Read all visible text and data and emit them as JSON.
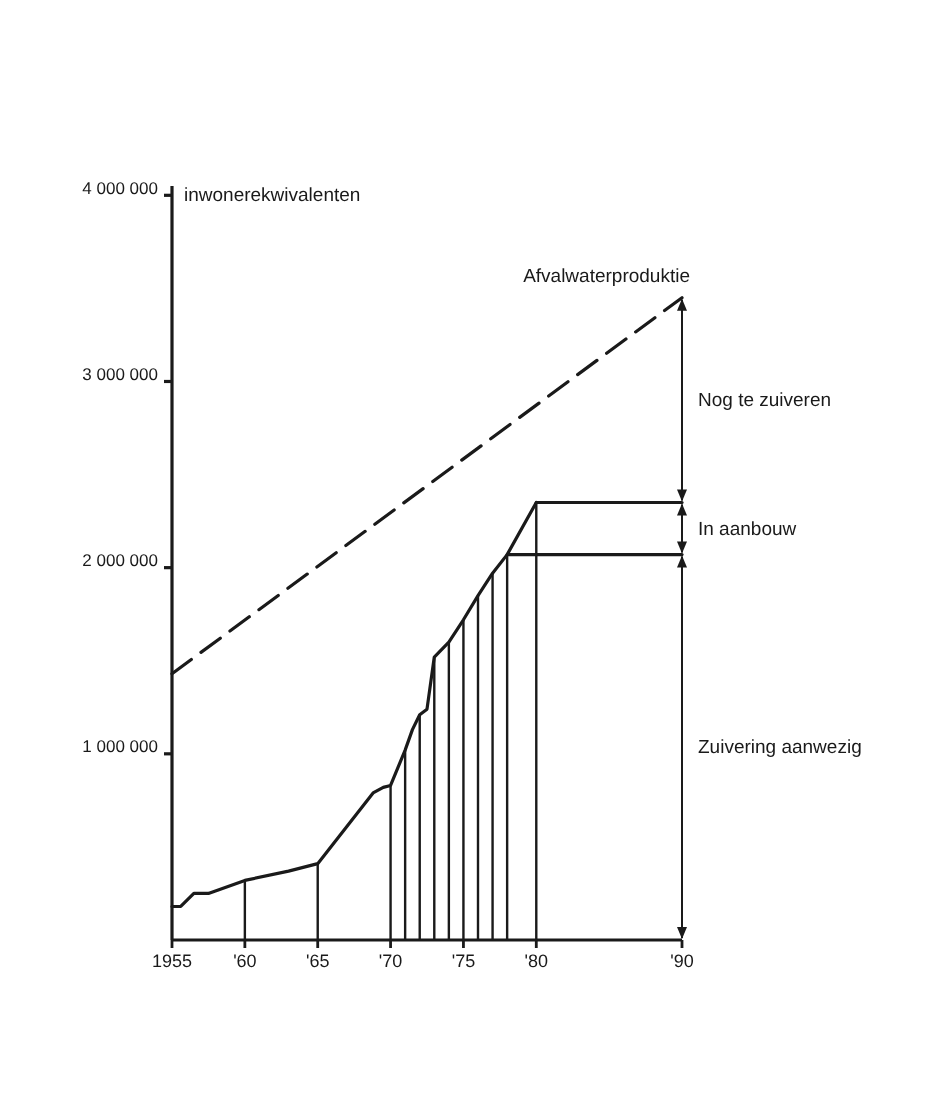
{
  "chart_data": {
    "type": "line",
    "ylabel": "inwonerekwivalenten",
    "xlim": [
      1955,
      1990
    ],
    "ylim": [
      0,
      4050000
    ],
    "xticks": [
      1955,
      {
        "value": 1960,
        "label": "'60"
      },
      {
        "value": 1965,
        "label": "'65"
      },
      {
        "value": 1970,
        "label": "'70"
      },
      {
        "value": 1975,
        "label": "'75"
      },
      {
        "value": 1980,
        "label": "'80"
      },
      {
        "value": 1990,
        "label": "'90"
      }
    ],
    "yticks": [
      {
        "value": 1000000,
        "label": "1 000 000"
      },
      {
        "value": 2000000,
        "label": "2 000 000"
      },
      {
        "value": 3000000,
        "label": "3 000 000"
      },
      {
        "value": 4000000,
        "label": "4 000 000"
      }
    ],
    "marker": "none",
    "series": [
      {
        "name": "Afvalwaterproduktie",
        "color": "#1a1a1a",
        "line_style": "dashed",
        "x": [
          1955,
          1990
        ],
        "values": [
          1430000,
          3450000
        ]
      },
      {
        "color": "#1a1a1a",
        "line_style": "solid",
        "x": [
          1955,
          1955.6,
          1956.5,
          1957.5,
          1960,
          1963,
          1965,
          1967,
          1968.8,
          1969.5,
          1970,
          1971,
          1971.5,
          1972,
          1972.5,
          1973,
          1974,
          1975,
          1976,
          1977,
          1978,
          1980
        ],
        "values": [
          180000,
          180000,
          250000,
          250000,
          320000,
          370000,
          410000,
          610000,
          790000,
          820000,
          830000,
          1020000,
          1130000,
          1210000,
          1240000,
          1520000,
          1600000,
          1720000,
          1850000,
          1970000,
          2070000,
          2350000
        ]
      },
      {
        "type": "bar",
        "color": "#1a1a1a",
        "x": [
          1960,
          1965,
          1970,
          1971,
          1972,
          1973,
          1974,
          1975,
          1976,
          1977,
          1978,
          1980
        ],
        "values": [
          320000,
          410000,
          830000,
          1020000,
          1210000,
          1520000,
          1600000,
          1720000,
          1850000,
          1970000,
          2070000,
          2350000
        ]
      },
      {
        "color": "#1a1a1a",
        "line_style": "solid",
        "x": [
          1980,
          1990
        ],
        "values": [
          2350000,
          2350000
        ]
      },
      {
        "color": "#1a1a1a",
        "line_style": "solid",
        "x": [
          1978,
          1990
        ],
        "values": [
          2070000,
          2070000
        ]
      }
    ],
    "annotations": [
      "Nog te zuiveren",
      "In aanbouw",
      "Zuivering aanwezig"
    ]
  }
}
